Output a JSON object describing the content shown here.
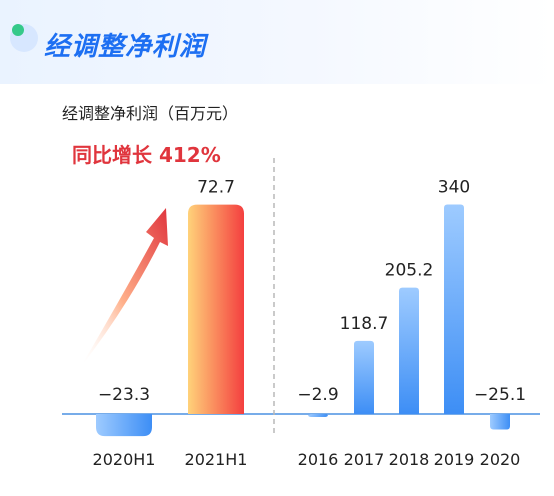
{
  "header": {
    "title": "经调整净利润",
    "subtitle": "经调整净利润（百万元）"
  },
  "colors": {
    "title": "#1d6ff2",
    "annotation": "#e0353d",
    "bar_blue_top": "#9ecbff",
    "bar_blue_bottom": "#3d8ef5",
    "bar_red_left": "#ffd27a",
    "bar_red_right": "#f43f3f",
    "zero_line": "#4a90e2",
    "divider": "#b8b8b8"
  },
  "chart_data": {
    "type": "bar",
    "categories": [
      "2020H1",
      "2021H1",
      "2016",
      "2017",
      "2018",
      "2019",
      "2020"
    ],
    "values": [
      -23.3,
      72.7,
      -2.9,
      118.7,
      205.2,
      340,
      -25.1
    ],
    "value_labels": [
      "−23.3",
      "72.7",
      "−2.9",
      "118.7",
      "205.2",
      "340",
      "−25.1"
    ],
    "groups": [
      {
        "categories": [
          "2020H1",
          "2021H1"
        ],
        "value_scale": "half-year"
      },
      {
        "categories": [
          "2016",
          "2017",
          "2018",
          "2019",
          "2020"
        ],
        "value_scale": "annual"
      }
    ],
    "highlight": "2021H1",
    "annotation": "同比增长 412%",
    "title": "经调整净利润",
    "ylabel": "",
    "unit": "百万元",
    "grid": false,
    "legend": "none"
  }
}
